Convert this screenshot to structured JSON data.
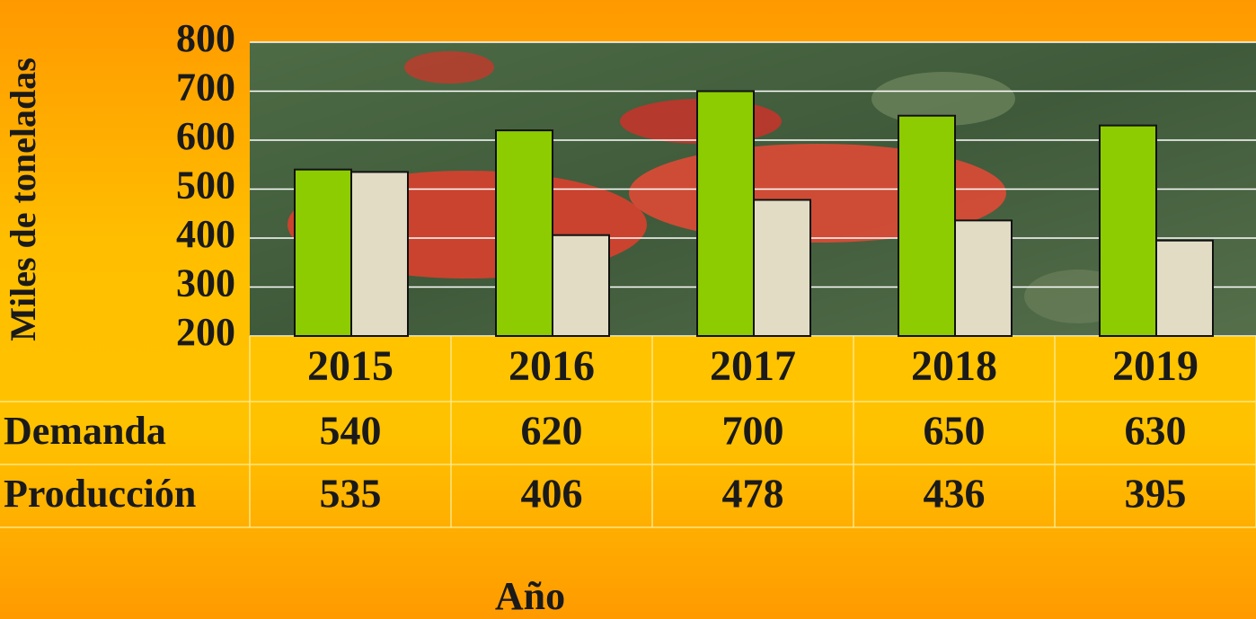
{
  "chart_data": {
    "type": "bar",
    "y_label": "Miles de toneladas",
    "x_label": "Año",
    "categories": [
      "2015",
      "2016",
      "2017",
      "2018",
      "2019"
    ],
    "series": [
      {
        "name": "Demanda",
        "color": "#8ccc00",
        "values": [
          540,
          620,
          700,
          650,
          630
        ]
      },
      {
        "name": "Producción",
        "color": "#e2dcc4",
        "values": [
          535,
          406,
          478,
          436,
          395
        ]
      }
    ],
    "ylim": [
      200,
      800
    ],
    "yticks": [
      200,
      300,
      400,
      500,
      600,
      700,
      800
    ],
    "grid": true
  }
}
